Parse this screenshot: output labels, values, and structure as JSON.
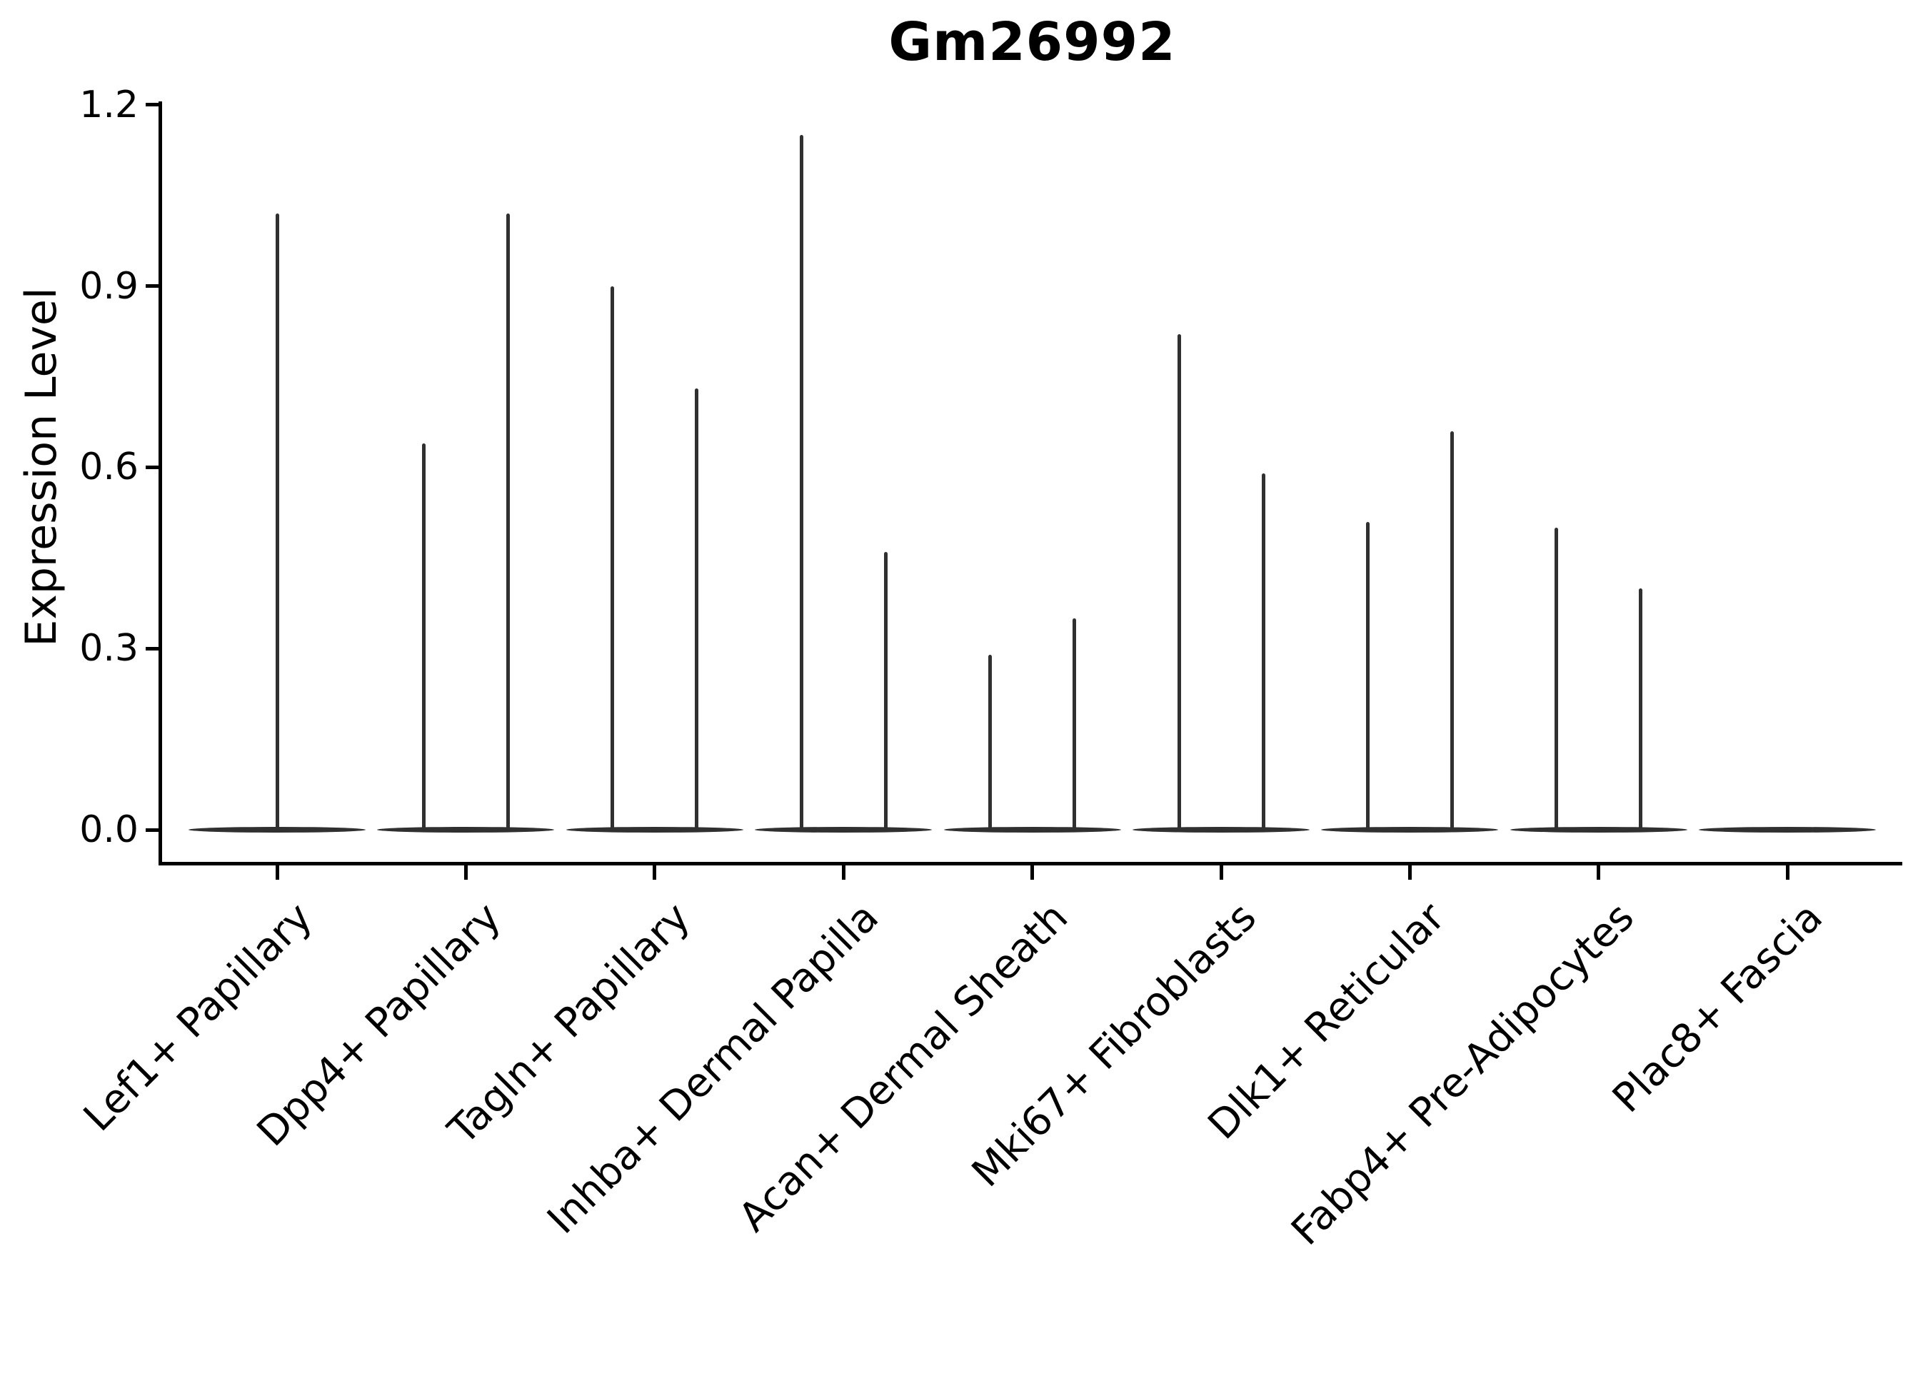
{
  "chart_data": {
    "type": "violin",
    "title": "Gm26992",
    "xlabel": "",
    "ylabel": "Expression Level",
    "ylim": [
      -0.06,
      1.21
    ],
    "ytick_labels": [
      "0.0",
      "0.3",
      "0.6",
      "0.9",
      "1.2"
    ],
    "ytick_values": [
      0.0,
      0.3,
      0.6,
      0.9,
      1.2
    ],
    "grid": false,
    "legend": "none",
    "violin_color": "#303030",
    "axis_color": "#000000",
    "categories": [
      "Lef1+ Papillary",
      "Dpp4+ Papillary",
      "Tagln+ Papillary",
      "Inhba+ Dermal Papilla",
      "Acan+ Dermal Sheath",
      "Mki67+ Fibroblasts",
      "Dlk1+ Reticular",
      "Fabp4+ Pre-Adipocytes",
      "Plac8+ Fascia"
    ],
    "violins": [
      {
        "category": "Lef1+ Papillary",
        "needles": [
          {
            "pos": "center",
            "max": 1.02
          }
        ]
      },
      {
        "category": "Dpp4+ Papillary",
        "needles": [
          {
            "pos": "left",
            "max": 0.64
          },
          {
            "pos": "right",
            "max": 1.02
          }
        ]
      },
      {
        "category": "Tagln+ Papillary",
        "needles": [
          {
            "pos": "left",
            "max": 0.9
          },
          {
            "pos": "right",
            "max": 0.73
          }
        ]
      },
      {
        "category": "Inhba+ Dermal Papilla",
        "needles": [
          {
            "pos": "left",
            "max": 1.15
          },
          {
            "pos": "right",
            "max": 0.46
          }
        ]
      },
      {
        "category": "Acan+ Dermal Sheath",
        "needles": [
          {
            "pos": "left",
            "max": 0.29
          },
          {
            "pos": "right",
            "max": 0.35
          }
        ]
      },
      {
        "category": "Mki67+ Fibroblasts",
        "needles": [
          {
            "pos": "left",
            "max": 0.82
          },
          {
            "pos": "right",
            "max": 0.59
          }
        ]
      },
      {
        "category": "Dlk1+ Reticular",
        "needles": [
          {
            "pos": "left",
            "max": 0.51
          },
          {
            "pos": "right",
            "max": 0.66
          }
        ]
      },
      {
        "category": "Fabp4+ Pre-Adipocytes",
        "needles": [
          {
            "pos": "left",
            "max": 0.5
          },
          {
            "pos": "right",
            "max": 0.4
          }
        ]
      },
      {
        "category": "Plac8+ Fascia",
        "needles": []
      }
    ],
    "baseline_value": 0.0,
    "note": "needle-thin violins; all categories show a flat density bar at expression 0"
  }
}
